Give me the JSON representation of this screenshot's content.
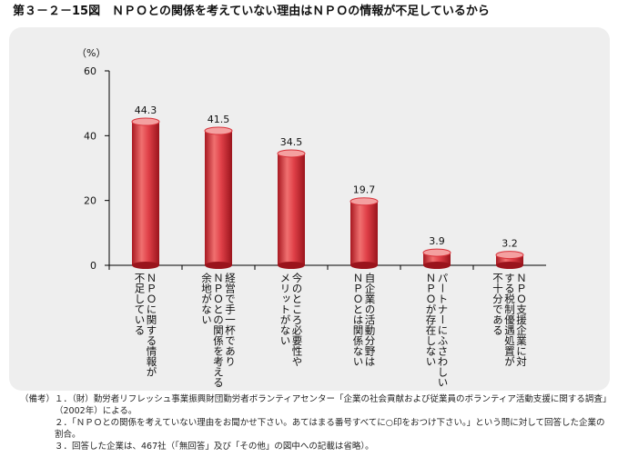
{
  "chart_data": {
    "type": "bar",
    "title": "第３－２－15図　ＮＰＯとの関係を考えていない理由はＮＰＯの情報が不足しているから",
    "unit": "（%）",
    "categories": [
      [
        "ＮＰＯに関する情報が",
        "不足している"
      ],
      [
        "経営で手一杯であり",
        "ＮＰＯとの関係を考える",
        "余地がない"
      ],
      [
        "今のところ必要性や",
        "メリットがない"
      ],
      [
        "自企業の活動分野は",
        "ＮＰＯとは関係ない"
      ],
      [
        "パートナーにふさわしい",
        "ＮＰＯが存在しない"
      ],
      [
        "ＮＰＯ支援企業に対",
        "する税制優遇処置が",
        "不十分である"
      ]
    ],
    "values": [
      44.3,
      41.5,
      34.5,
      19.7,
      3.9,
      3.2
    ],
    "color": "#d8323a",
    "ylim": [
      0,
      60
    ],
    "yticks": [
      0,
      20,
      40,
      60
    ],
    "notes": {
      "label": "（備考）",
      "items": [
        "１．（財）勤労者リフレッシュ事業振興財団勤労者ボランティアセンター「企業の社会貢献および従業員のボランティア活動支援に関する調査」（2002年）による。",
        "２．「ＮＰＯとの関係を考えていない理由をお聞かせ下さい。あてはまる番号すべてに○印をおつけ下さい。」という問に対して回答した企業の割合。",
        "３．回答した企業は、467社（「無回答」及び「その他」の図中への記載は省略）。"
      ]
    }
  }
}
